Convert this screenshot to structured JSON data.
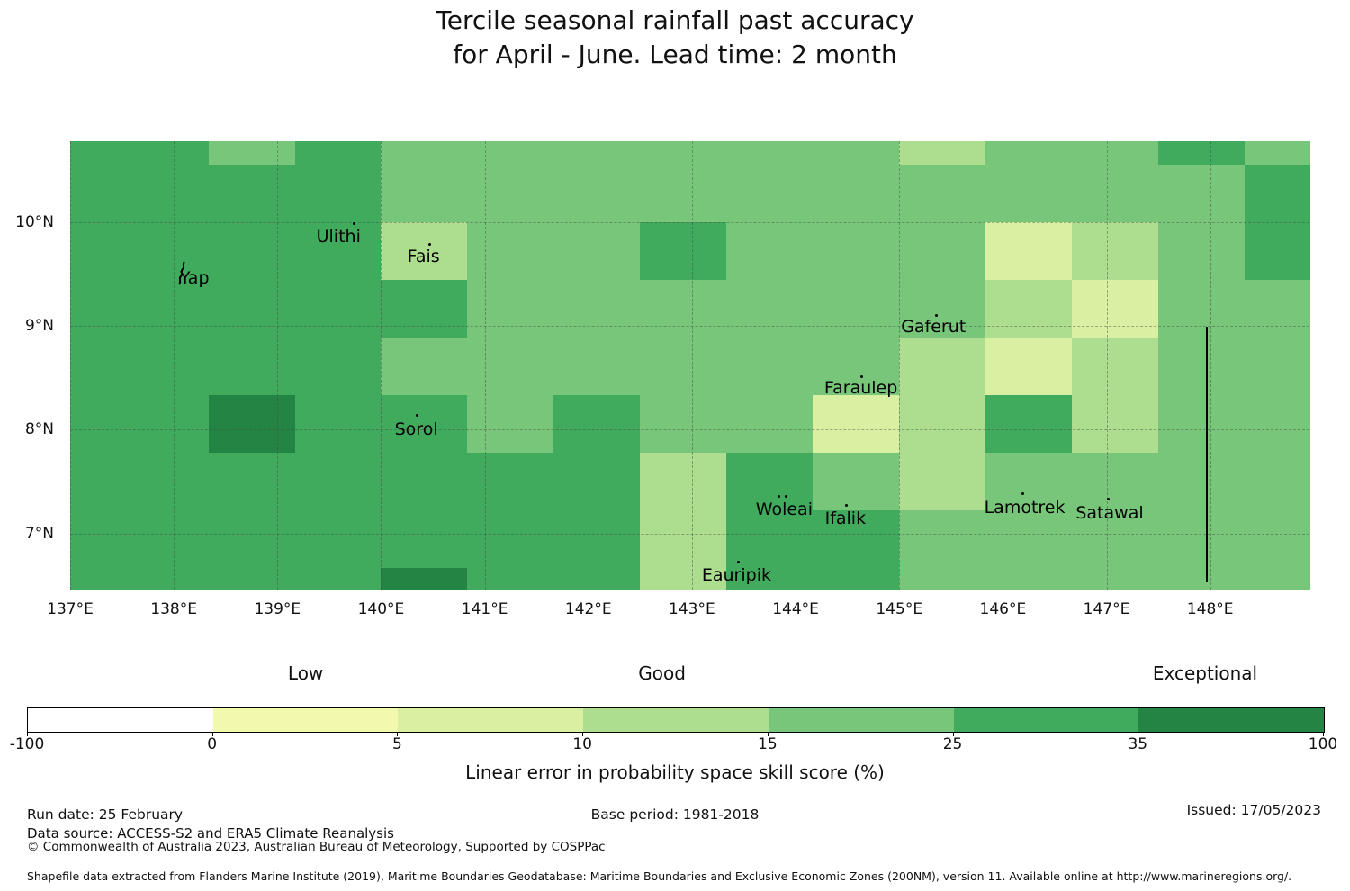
{
  "title": {
    "line1": "Tercile seasonal rainfall past accuracy",
    "line2": "for April - June. Lead time: 2 month"
  },
  "chart_data": {
    "type": "heatmap",
    "title": "Tercile seasonal rainfall past accuracy for April - June. Lead time: 2 month",
    "x_axis": {
      "range": [
        137.0,
        148.958
      ],
      "tick_values": [
        137,
        138,
        139,
        140,
        141,
        142,
        143,
        144,
        145,
        146,
        147,
        148
      ],
      "tick_labels": [
        "137°E",
        "138°E",
        "139°E",
        "140°E",
        "141°E",
        "142°E",
        "143°E",
        "144°E",
        "145°E",
        "146°E",
        "147°E",
        "148°E"
      ]
    },
    "y_axis": {
      "range": [
        6.458,
        10.78
      ],
      "tick_values": [
        10,
        9,
        8,
        7
      ],
      "tick_labels": [
        "10°N",
        "9°N",
        "8°N",
        "7°N"
      ]
    },
    "grid_on": true,
    "bins": {
      "b1": {
        "range": "-100 to 0",
        "color": "#ffffff"
      },
      "b2": {
        "range": "0 to 5",
        "color": "#f2f8ae"
      },
      "b3": {
        "range": "5 to 10",
        "color": "#d9f0a3"
      },
      "b4": {
        "range": "10 to 15",
        "color": "#addd8e"
      },
      "b5": {
        "range": "15 to 25",
        "color": "#78c679"
      },
      "b6": {
        "range": "25 to 35",
        "color": "#41ab5d"
      },
      "b7": {
        "range": "35 to 100",
        "color": "#238443"
      }
    },
    "lon_edges": [
      137.0,
      137.5,
      138.3333,
      139.1667,
      140.0,
      140.8333,
      141.6667,
      142.5,
      143.3333,
      144.1667,
      145.0,
      145.8333,
      146.6667,
      147.5,
      148.3333,
      148.958
    ],
    "lat_edges": [
      10.78,
      10.5556,
      10.0,
      9.4444,
      8.8889,
      8.3333,
      7.7778,
      7.2222,
      6.6667,
      6.458
    ],
    "grid": [
      [
        "b6",
        "b6",
        "b5",
        "b6",
        "b5",
        "b5",
        "b5",
        "b5",
        "b5",
        "b5",
        "b4",
        "b5",
        "b5",
        "b6",
        "b5"
      ],
      [
        "b6",
        "b6",
        "b6",
        "b6",
        "b5",
        "b5",
        "b5",
        "b5",
        "b5",
        "b5",
        "b5",
        "b5",
        "b5",
        "b5",
        "b6"
      ],
      [
        "b6",
        "b6",
        "b6",
        "b6",
        "b4",
        "b5",
        "b5",
        "b6",
        "b5",
        "b5",
        "b5",
        "b3",
        "b4",
        "b5",
        "b6"
      ],
      [
        "b6",
        "b6",
        "b6",
        "b6",
        "b6",
        "b5",
        "b5",
        "b5",
        "b5",
        "b5",
        "b5",
        "b4",
        "b3",
        "b5",
        "b5"
      ],
      [
        "b6",
        "b6",
        "b6",
        "b6",
        "b5",
        "b5",
        "b5",
        "b5",
        "b5",
        "b5",
        "b4",
        "b3",
        "b4",
        "b5",
        "b5"
      ],
      [
        "b6",
        "b6",
        "b7",
        "b6",
        "b6",
        "b5",
        "b6",
        "b5",
        "b5",
        "b3",
        "b4",
        "b6",
        "b4",
        "b5",
        "b5"
      ],
      [
        "b6",
        "b6",
        "b6",
        "b6",
        "b6",
        "b6",
        "b6",
        "b4",
        "b6",
        "b5",
        "b4",
        "b5",
        "b5",
        "b5",
        "b5"
      ],
      [
        "b6",
        "b6",
        "b6",
        "b6",
        "b6",
        "b6",
        "b6",
        "b4",
        "b6",
        "b6",
        "b5",
        "b5",
        "b5",
        "b5",
        "b5"
      ],
      [
        "b6",
        "b6",
        "b6",
        "b6",
        "b7",
        "b6",
        "b6",
        "b4",
        "b6",
        "b6",
        "b5",
        "b5",
        "b5",
        "b5",
        "b5"
      ]
    ],
    "boundary_line": {
      "lon": 147.96,
      "lat_from": 8.99,
      "lat_to": 6.53,
      "color": "#000000"
    },
    "islands": [
      {
        "name": "Yap",
        "label_lon": 138.2,
        "label_lat": 9.46,
        "marker": "island",
        "points": [
          [
            138.08,
            9.5
          ]
        ]
      },
      {
        "name": "Ulithi",
        "label_lon": 139.59,
        "label_lat": 9.86,
        "marker": "dot",
        "points": [
          [
            139.74,
            9.99
          ]
        ]
      },
      {
        "name": "Fais",
        "label_lon": 140.41,
        "label_lat": 9.67,
        "marker": "dot",
        "points": [
          [
            140.47,
            9.79
          ]
        ]
      },
      {
        "name": "Sorol",
        "label_lon": 140.34,
        "label_lat": 8.0,
        "marker": "dot",
        "points": [
          [
            140.35,
            8.14
          ]
        ]
      },
      {
        "name": "Gaferut",
        "label_lon": 145.33,
        "label_lat": 8.99,
        "marker": "dot",
        "points": [
          [
            145.36,
            9.1
          ]
        ]
      },
      {
        "name": "Faraulep",
        "label_lon": 144.63,
        "label_lat": 8.4,
        "marker": "dot",
        "points": [
          [
            144.64,
            8.51
          ]
        ]
      },
      {
        "name": "Woleai",
        "label_lon": 143.89,
        "label_lat": 7.23,
        "marker": "dot",
        "points": [
          [
            143.84,
            7.36
          ],
          [
            143.91,
            7.36
          ]
        ]
      },
      {
        "name": "Ifalik",
        "label_lon": 144.48,
        "label_lat": 7.14,
        "marker": "dot",
        "points": [
          [
            144.49,
            7.27
          ]
        ]
      },
      {
        "name": "Eauripik",
        "label_lon": 143.43,
        "label_lat": 6.6,
        "marker": "dot",
        "points": [
          [
            143.45,
            6.72
          ]
        ]
      },
      {
        "name": "Lamotrek",
        "label_lon": 146.21,
        "label_lat": 7.25,
        "marker": "dot",
        "points": [
          [
            146.19,
            7.38
          ]
        ]
      },
      {
        "name": "Satawal",
        "label_lon": 147.03,
        "label_lat": 7.2,
        "marker": "dot",
        "points": [
          [
            147.02,
            7.33
          ]
        ]
      }
    ]
  },
  "legend": {
    "segments": [
      {
        "from": "-100",
        "to": "0",
        "color": "#ffffff"
      },
      {
        "from": "0",
        "to": "5",
        "color": "#f2f8ae"
      },
      {
        "from": "5",
        "to": "10",
        "color": "#d9f0a3"
      },
      {
        "from": "10",
        "to": "15",
        "color": "#addd8e"
      },
      {
        "from": "15",
        "to": "25",
        "color": "#78c679"
      },
      {
        "from": "25",
        "to": "35",
        "color": "#41ab5d"
      },
      {
        "from": "35",
        "to": "100",
        "color": "#238443"
      }
    ],
    "ticks": [
      "-100",
      "0",
      "5",
      "10",
      "15",
      "25",
      "35",
      "100"
    ],
    "categories": [
      {
        "label": "Low",
        "pos_pct": 21.5
      },
      {
        "label": "Good",
        "pos_pct": 49.0
      },
      {
        "label": "Exceptional",
        "pos_pct": 90.9
      }
    ],
    "axis_label": "Linear error in probability space skill score (%)"
  },
  "footer": {
    "run_date": "Run date: 25 February",
    "base_period": "Base period: 1981-2018",
    "issued": "Issued: 17/05/2023",
    "data_source": "Data source: ACCESS-S2 and ERA5 Climate Reanalysis",
    "copyright": "© Commonwealth of Australia 2023, Australian Bureau of Meteorology, Supported by COSPPac",
    "shapefile_note": "Shapefile data extracted from Flanders Marine Institute (2019), Maritime Boundaries Geodatabase: Maritime Boundaries and Exclusive Economic Zones (200NM), version 11. Available online at http://www.marineregions.org/."
  }
}
